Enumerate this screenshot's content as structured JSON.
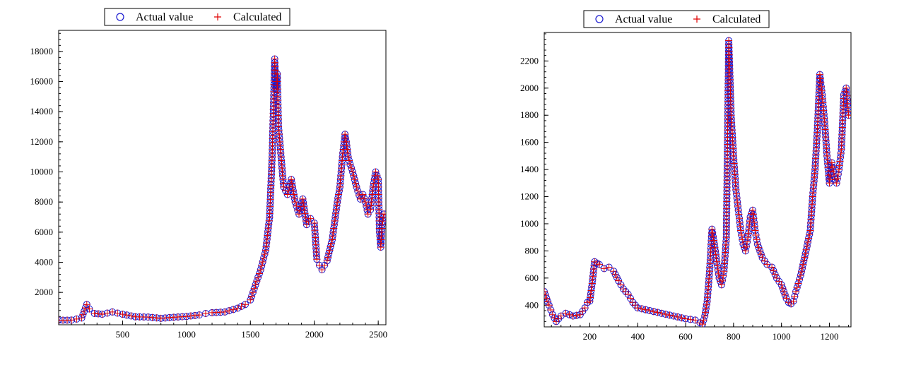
{
  "colors": {
    "actual": "#1a1ad0",
    "calculated": "#e00000",
    "axis": "#000000",
    "background": "#ffffff"
  },
  "chart_data": [
    {
      "type": "scatter",
      "title": "",
      "xlabel": "",
      "ylabel": "",
      "xlim": [
        0,
        2560
      ],
      "ylim": [
        -150,
        19400
      ],
      "xticks": [
        500,
        1000,
        1500,
        2000,
        2500
      ],
      "yticks": [
        2000,
        4000,
        6000,
        8000,
        10000,
        12000,
        14000,
        16000,
        18000
      ],
      "grid": false,
      "legend_position": "top",
      "series": [
        {
          "name": "Actual value",
          "marker": "circle",
          "color": "#1a1ad0"
        },
        {
          "name": "Calculated",
          "marker": "plus",
          "color": "#e00000"
        }
      ],
      "x": [
        0,
        100,
        180,
        220,
        240,
        280,
        340,
        420,
        500,
        600,
        700,
        800,
        900,
        1000,
        1100,
        1150,
        1200,
        1300,
        1400,
        1460,
        1500,
        1540,
        1580,
        1620,
        1650,
        1670,
        1690,
        1700,
        1710,
        1720,
        1735,
        1760,
        1790,
        1820,
        1850,
        1880,
        1910,
        1940,
        1970,
        2000,
        2020,
        2040,
        2060,
        2080,
        2100,
        2140,
        2180,
        2200,
        2220,
        2240,
        2250,
        2265,
        2280,
        2300,
        2330,
        2360,
        2380,
        2400,
        2420,
        2440,
        2460,
        2480,
        2500,
        2510,
        2520,
        2530,
        2545
      ],
      "values": [
        150,
        160,
        300,
        1200,
        900,
        600,
        550,
        700,
        550,
        380,
        360,
        280,
        350,
        400,
        500,
        600,
        650,
        700,
        950,
        1200,
        1500,
        2500,
        3500,
        4800,
        7000,
        11000,
        17500,
        15500,
        16500,
        13000,
        11500,
        9000,
        8500,
        9500,
        8000,
        7200,
        8200,
        6500,
        6900,
        6600,
        4200,
        3800,
        3500,
        3800,
        4100,
        5500,
        8000,
        9000,
        11000,
        12500,
        12000,
        11000,
        10500,
        10000,
        9000,
        8200,
        8500,
        8000,
        7200,
        7500,
        9000,
        10000,
        9500,
        6000,
        5000,
        6500,
        7200
      ],
      "series_values": {
        "Actual value": "values",
        "Calculated": "values"
      }
    },
    {
      "type": "scatter",
      "title": "",
      "xlabel": "",
      "ylabel": "",
      "xlim": [
        10,
        1290
      ],
      "ylim": [
        240,
        2410
      ],
      "xticks": [
        200,
        400,
        600,
        800,
        1000,
        1200
      ],
      "yticks": [
        400,
        600,
        800,
        1000,
        1200,
        1400,
        1600,
        1800,
        2000,
        2200
      ],
      "grid": false,
      "legend_position": "top",
      "series": [
        {
          "name": "Actual value",
          "marker": "circle",
          "color": "#1a1ad0"
        },
        {
          "name": "Calculated",
          "marker": "plus",
          "color": "#e00000"
        }
      ],
      "x": [
        10,
        20,
        30,
        45,
        60,
        80,
        100,
        130,
        160,
        180,
        190,
        200,
        210,
        220,
        230,
        240,
        260,
        280,
        300,
        320,
        340,
        360,
        380,
        400,
        450,
        500,
        550,
        600,
        640,
        660,
        670,
        680,
        690,
        700,
        710,
        720,
        730,
        740,
        750,
        760,
        770,
        780,
        790,
        800,
        810,
        820,
        830,
        840,
        850,
        860,
        870,
        880,
        890,
        900,
        920,
        940,
        960,
        980,
        1000,
        1020,
        1030,
        1040,
        1050,
        1060,
        1080,
        1100,
        1120,
        1130,
        1140,
        1150,
        1160,
        1170,
        1180,
        1190,
        1200,
        1210,
        1220,
        1230,
        1240,
        1250,
        1260,
        1270,
        1280
      ],
      "values": [
        500,
        450,
        400,
        330,
        280,
        320,
        340,
        320,
        330,
        380,
        420,
        430,
        560,
        720,
        710,
        700,
        670,
        680,
        650,
        580,
        520,
        480,
        420,
        380,
        360,
        340,
        320,
        300,
        290,
        270,
        260,
        320,
        430,
        650,
        960,
        850,
        720,
        600,
        550,
        650,
        900,
        2350,
        1800,
        1500,
        1250,
        1100,
        950,
        850,
        800,
        900,
        1050,
        1100,
        950,
        850,
        750,
        700,
        680,
        600,
        550,
        450,
        420,
        410,
        430,
        500,
        620,
        780,
        950,
        1200,
        1400,
        1700,
        2100,
        1950,
        1750,
        1500,
        1300,
        1450,
        1350,
        1300,
        1400,
        1550,
        1950,
        2000,
        1800
      ],
      "series_values": {
        "Actual value": "values",
        "Calculated": "values"
      }
    }
  ]
}
